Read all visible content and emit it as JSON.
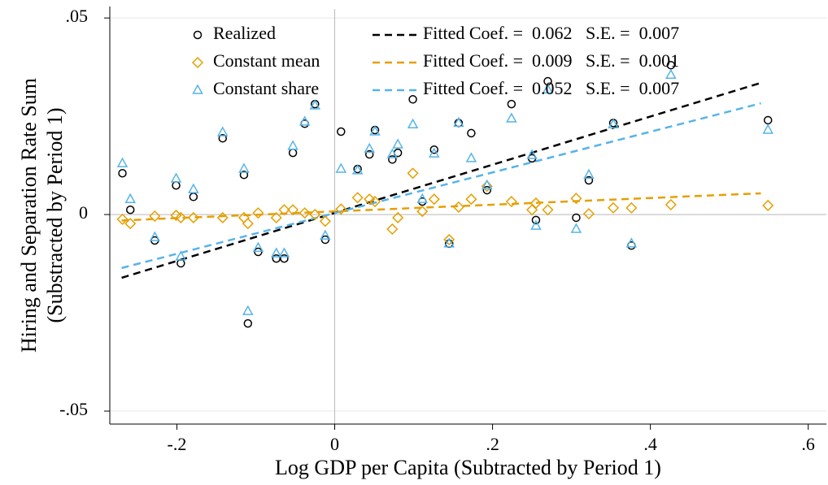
{
  "chart_data": {
    "type": "scatter",
    "xlabel": "Log GDP per Capita (Subtracted by Period 1)",
    "ylabel": [
      "Hiring and Separation Rate Sum",
      "(Substracted by Period 1)"
    ],
    "xlim": [
      -0.285,
      0.623
    ],
    "ylim": [
      -0.0533,
      0.0523
    ],
    "xticks": [
      {
        "value": -0.2,
        "label": "-.2"
      },
      0,
      {
        "value": 0.2,
        "label": ".2"
      },
      {
        "value": 0.4,
        "label": ".4"
      },
      {
        "value": 0.6,
        "label": ".6"
      }
    ],
    "yticks": [
      {
        "value": -0.05,
        "label": "-.05"
      },
      0,
      {
        "value": 0.05,
        "label": ".05"
      }
    ],
    "grid": true,
    "xline": 0,
    "yline": 0,
    "x": [
      -0.269,
      -0.259,
      -0.228,
      -0.201,
      -0.195,
      -0.179,
      -0.142,
      -0.115,
      -0.11,
      -0.097,
      -0.074,
      -0.064,
      -0.053,
      -0.038,
      -0.025,
      -0.012,
      0.008,
      0.029,
      0.044,
      0.051,
      0.073,
      0.08,
      0.099,
      0.111,
      0.126,
      0.145,
      0.157,
      0.173,
      0.193,
      0.224,
      0.25,
      0.255,
      0.27,
      0.306,
      0.322,
      0.353,
      0.376,
      0.426,
      0.549
    ],
    "series": [
      {
        "name": "Realized",
        "color": "#000000",
        "marker": "circle",
        "values": [
          0.0105,
          0.0012,
          -0.0066,
          0.0074,
          -0.0124,
          0.0045,
          0.0194,
          0.0101,
          -0.0277,
          -0.0095,
          -0.0112,
          -0.0112,
          0.0157,
          0.0231,
          0.0281,
          -0.0064,
          0.0211,
          0.0116,
          0.0153,
          0.0215,
          0.014,
          0.0157,
          0.0293,
          0.0033,
          0.0165,
          -0.0074,
          0.0233,
          0.0207,
          0.0062,
          0.0281,
          0.0143,
          -0.0014,
          0.0339,
          -0.0008,
          0.0087,
          0.0233,
          -0.0079,
          0.038,
          0.024
        ]
      },
      {
        "name": "Constant mean",
        "color": "#e69f00",
        "marker": "diamond",
        "values": [
          -0.0012,
          -0.0023,
          -0.0004,
          -0.0002,
          -0.0008,
          -0.0008,
          -0.0008,
          -0.0008,
          -0.0023,
          0.0004,
          -0.0008,
          0.0012,
          0.0012,
          0.0004,
          0,
          -0.0017,
          0.0014,
          0.0043,
          0.0039,
          0.0033,
          -0.0037,
          -0.0008,
          0.0105,
          0.0008,
          0.0039,
          -0.0064,
          0.0019,
          0.0039,
          0.0072,
          0.0033,
          0.0012,
          0.0029,
          0.0012,
          0.0041,
          0.0002,
          0.0017,
          0.0017,
          0.0025,
          0.0023
        ]
      },
      {
        "name": "Constant share",
        "color": "#56b4e9",
        "marker": "triangle",
        "values": [
          0.013,
          0.0039,
          -0.0058,
          0.0091,
          -0.0107,
          0.0064,
          0.0209,
          0.0116,
          -0.0246,
          -0.0085,
          -0.0099,
          -0.0099,
          0.0174,
          0.0236,
          0.0277,
          -0.0054,
          0.0116,
          0.0112,
          0.0167,
          0.0211,
          0.0153,
          0.0178,
          0.0229,
          0.0039,
          0.0155,
          -0.0074,
          0.0233,
          0.0143,
          0.0074,
          0.0244,
          0.0151,
          -0.0029,
          0.0318,
          -0.0037,
          0.0101,
          0.0229,
          -0.0074,
          0.0355,
          0.0215
        ]
      }
    ],
    "fits": [
      {
        "name": "Fitted Coef. =  0.062   S.E. =  0.007",
        "color": "#000000",
        "x": [
          -0.27,
          0.54
        ],
        "values": [
          -0.0161,
          0.0335
        ]
      },
      {
        "name": "Fitted Coef. =  0.009   S.E. =  0.001",
        "color": "#e69f00",
        "x": [
          -0.27,
          0.54
        ],
        "values": [
          -0.0015,
          0.0054
        ]
      },
      {
        "name": "Fitted Coef. =  0.052   S.E. =  0.007",
        "color": "#56b4e9",
        "x": [
          -0.27,
          0.54
        ],
        "values": [
          -0.0136,
          0.0283
        ]
      }
    ]
  }
}
